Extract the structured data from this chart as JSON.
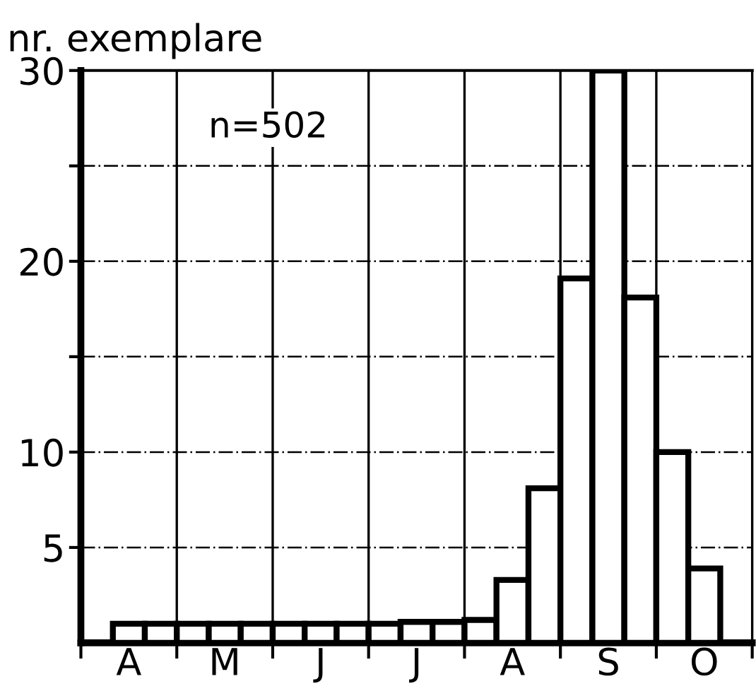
{
  "chart_data": {
    "type": "bar",
    "ylabel": "nr. exemplare",
    "annotations": [
      "n=502"
    ],
    "categories": [
      null,
      "A",
      null,
      null,
      "M",
      null,
      null,
      "J",
      null,
      null,
      "J",
      null,
      null,
      "A",
      null,
      null,
      "S",
      null,
      null,
      "O",
      null
    ],
    "values": [
      null,
      1.0,
      1.0,
      1.0,
      1.0,
      1.0,
      1.0,
      1.0,
      1.0,
      1.0,
      1.1,
      1.1,
      1.2,
      3.3,
      8.1,
      19.1,
      30,
      18.1,
      10,
      3.9,
      null
    ],
    "color": "#ffffff",
    "ylim": [
      0,
      30
    ],
    "yticks": [
      5,
      10,
      {
        "value": 15,
        "label": null
      },
      20,
      {
        "value": 25,
        "label": null
      },
      30
    ],
    "grid": true
  }
}
